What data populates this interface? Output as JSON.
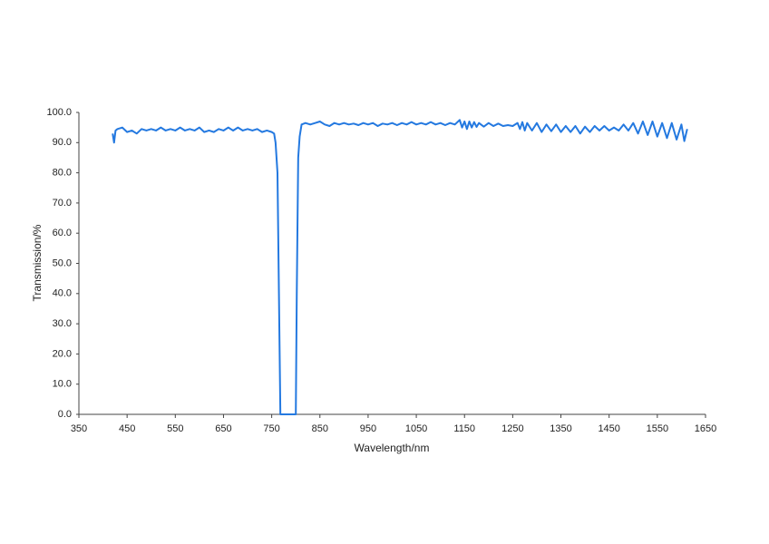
{
  "chart_data": {
    "type": "line",
    "x_label": "Wavelength/nm",
    "y_label": "Transmission/%",
    "xlim": [
      350,
      1650
    ],
    "xticks": [
      350,
      450,
      550,
      650,
      750,
      850,
      950,
      1050,
      1150,
      1250,
      1350,
      1450,
      1550,
      1650
    ],
    "ylim": [
      0,
      100
    ],
    "yticks": [
      {
        "value": 0,
        "label": "0.0"
      },
      {
        "value": 10,
        "label": "10.0"
      },
      {
        "value": 20,
        "label": "20.0"
      },
      {
        "value": 30,
        "label": "30.0"
      },
      {
        "value": 40,
        "label": "40.0"
      },
      {
        "value": 50,
        "label": "50.0"
      },
      {
        "value": 60,
        "label": "60.0"
      },
      {
        "value": 70,
        "label": "70.0"
      },
      {
        "value": 80,
        "label": "80.0"
      },
      {
        "value": 90,
        "label": "90.0"
      },
      {
        "value": 100,
        "label": "100.0"
      }
    ],
    "grid": false,
    "x": [
      420,
      423,
      426,
      430,
      440,
      450,
      460,
      470,
      480,
      490,
      500,
      510,
      520,
      530,
      540,
      550,
      560,
      570,
      580,
      590,
      600,
      610,
      620,
      630,
      640,
      650,
      660,
      670,
      680,
      690,
      700,
      710,
      720,
      730,
      740,
      750,
      755,
      758,
      762,
      765,
      768,
      800,
      802,
      805,
      808,
      812,
      820,
      830,
      840,
      850,
      860,
      870,
      880,
      890,
      900,
      910,
      920,
      930,
      940,
      950,
      960,
      970,
      980,
      990,
      1000,
      1010,
      1020,
      1030,
      1040,
      1050,
      1060,
      1070,
      1080,
      1090,
      1100,
      1110,
      1120,
      1130,
      1140,
      1145,
      1150,
      1155,
      1160,
      1165,
      1170,
      1175,
      1180,
      1190,
      1200,
      1210,
      1220,
      1230,
      1240,
      1250,
      1260,
      1265,
      1270,
      1275,
      1280,
      1290,
      1300,
      1310,
      1320,
      1330,
      1340,
      1350,
      1360,
      1370,
      1380,
      1390,
      1400,
      1410,
      1420,
      1430,
      1440,
      1450,
      1460,
      1470,
      1480,
      1490,
      1500,
      1510,
      1520,
      1530,
      1540,
      1550,
      1560,
      1570,
      1580,
      1590,
      1600,
      1606,
      1612
    ],
    "series": [
      {
        "name": "Transmission",
        "color": "#2479e0",
        "values": [
          93,
          90,
          94,
          94.5,
          95,
          93.5,
          94,
          93,
          94.5,
          94,
          94.5,
          94,
          95,
          94,
          94.5,
          94,
          95,
          94,
          94.5,
          94,
          95,
          93.5,
          94,
          93.5,
          94.5,
          94,
          95,
          94,
          95,
          94,
          94.5,
          94,
          94.5,
          93.5,
          94,
          93.5,
          93,
          90,
          80,
          40,
          0,
          0,
          40,
          85,
          92,
          96,
          96.5,
          96,
          96.5,
          97,
          96,
          95.5,
          96.5,
          96,
          96.5,
          96,
          96.3,
          95.8,
          96.5,
          96,
          96.5,
          95.5,
          96.3,
          96,
          96.5,
          95.8,
          96.5,
          96,
          96.8,
          96,
          96.5,
          96,
          96.8,
          96,
          96.5,
          95.8,
          96.5,
          96,
          97.5,
          95,
          97,
          94.5,
          97,
          95,
          96.8,
          95.2,
          96.5,
          95.3,
          96.5,
          95.5,
          96.3,
          95.5,
          95.8,
          95.5,
          96.5,
          94.5,
          96.8,
          94,
          96.5,
          94,
          96.5,
          93.5,
          96,
          93.8,
          96,
          93.5,
          95.5,
          93.5,
          95.5,
          93,
          95.3,
          93.5,
          95.5,
          94,
          95.5,
          94,
          95,
          94,
          96,
          94,
          96.5,
          93,
          97,
          92.5,
          97,
          92,
          96.5,
          91.5,
          96.5,
          91,
          96,
          90.5,
          94.5
        ]
      }
    ]
  }
}
